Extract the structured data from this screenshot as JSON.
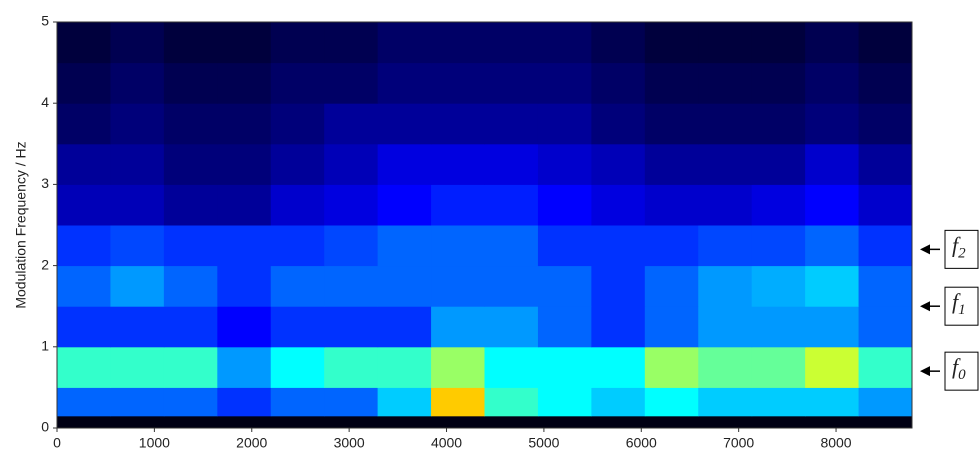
{
  "chart_data": {
    "type": "heatmap",
    "y_label": "Modulation Frequency / Hz",
    "xlim": [
      0,
      8780
    ],
    "ylim": [
      0,
      5
    ],
    "xticks": [
      0,
      1000,
      2000,
      3000,
      4000,
      5000,
      6000,
      7000,
      8000
    ],
    "yticks": [
      0,
      1,
      2,
      3,
      4,
      5
    ],
    "colormap": "jet",
    "yedges": [
      0,
      0.15,
      0.5,
      1,
      1.5,
      2,
      2.5,
      3,
      3.5,
      4,
      4.5,
      5
    ],
    "values": [
      [
        0.02,
        0.02,
        0.02,
        0.02,
        0.02,
        0.02,
        0.02,
        0.02,
        0.02,
        0.02,
        0.02,
        0.02,
        0.02,
        0.02,
        0.02,
        0.02
      ],
      [
        0.35,
        0.35,
        0.35,
        0.3,
        0.35,
        0.35,
        0.45,
        0.8,
        0.55,
        0.5,
        0.45,
        0.5,
        0.45,
        0.45,
        0.45,
        0.4
      ],
      [
        0.55,
        0.55,
        0.55,
        0.4,
        0.5,
        0.55,
        0.55,
        0.65,
        0.5,
        0.5,
        0.5,
        0.65,
        0.6,
        0.6,
        0.7,
        0.55
      ],
      [
        0.3,
        0.3,
        0.3,
        0.25,
        0.3,
        0.3,
        0.3,
        0.4,
        0.4,
        0.35,
        0.3,
        0.35,
        0.4,
        0.4,
        0.4,
        0.35
      ],
      [
        0.35,
        0.4,
        0.35,
        0.3,
        0.35,
        0.35,
        0.35,
        0.35,
        0.35,
        0.35,
        0.3,
        0.35,
        0.4,
        0.42,
        0.45,
        0.35
      ],
      [
        0.3,
        0.32,
        0.3,
        0.3,
        0.3,
        0.32,
        0.35,
        0.35,
        0.35,
        0.3,
        0.3,
        0.3,
        0.32,
        0.32,
        0.35,
        0.3
      ],
      [
        0.18,
        0.18,
        0.15,
        0.15,
        0.2,
        0.22,
        0.25,
        0.28,
        0.28,
        0.25,
        0.22,
        0.2,
        0.2,
        0.22,
        0.25,
        0.2
      ],
      [
        0.15,
        0.15,
        0.12,
        0.12,
        0.15,
        0.18,
        0.22,
        0.22,
        0.22,
        0.2,
        0.18,
        0.15,
        0.15,
        0.15,
        0.2,
        0.15
      ],
      [
        0.1,
        0.12,
        0.1,
        0.1,
        0.12,
        0.15,
        0.15,
        0.15,
        0.15,
        0.15,
        0.12,
        0.1,
        0.1,
        0.1,
        0.12,
        0.1
      ],
      [
        0.08,
        0.1,
        0.08,
        0.08,
        0.1,
        0.1,
        0.12,
        0.12,
        0.12,
        0.12,
        0.1,
        0.08,
        0.08,
        0.08,
        0.1,
        0.08
      ],
      [
        0.06,
        0.08,
        0.06,
        0.06,
        0.08,
        0.08,
        0.1,
        0.1,
        0.1,
        0.1,
        0.08,
        0.06,
        0.06,
        0.06,
        0.08,
        0.06
      ]
    ],
    "annotations": [
      {
        "text": "f",
        "subscript": "2",
        "y": 2.2
      },
      {
        "text": "f",
        "subscript": "1",
        "y": 1.5
      },
      {
        "text": "f",
        "subscript": "0",
        "y": 0.7
      }
    ]
  }
}
